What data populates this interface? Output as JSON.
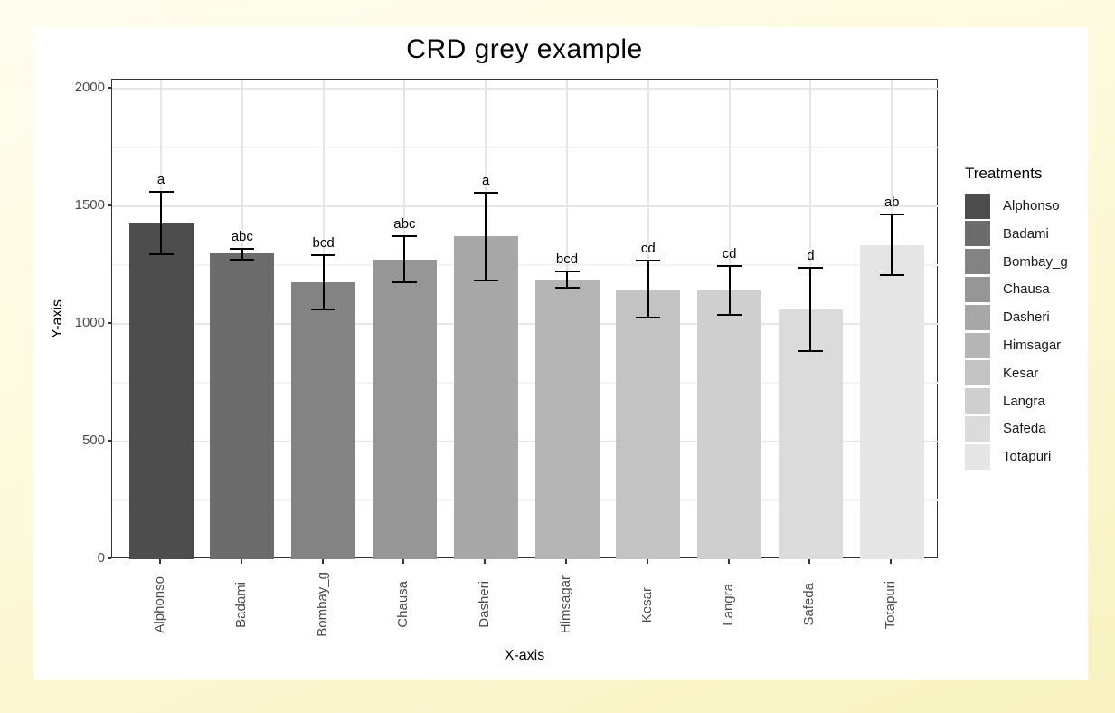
{
  "chart_data": {
    "type": "bar",
    "title": "CRD grey example",
    "xlabel": "X-axis",
    "ylabel": "Y-axis",
    "legend_title": "Treatments",
    "legend_position": "right",
    "ylim": [
      0,
      2000
    ],
    "ytick_values": [
      0,
      500,
      1000,
      1500,
      2000
    ],
    "ytick_labels": [
      "0",
      "500",
      "1000",
      "1500",
      "2000"
    ],
    "minor_gridline_values": [
      250,
      750,
      1250,
      1750
    ],
    "grid": "on",
    "categories": [
      "Alphonso",
      "Badami",
      "Bombay_g",
      "Chausa",
      "Dasheri",
      "Himsagar",
      "Kesar",
      "Langra",
      "Safeda",
      "Totapuri"
    ],
    "values": [
      1428,
      1300,
      1178,
      1275,
      1372,
      1188,
      1148,
      1143,
      1062,
      1336
    ],
    "error_low": [
      1295,
      1272,
      1063,
      1176,
      1186,
      1152,
      1026,
      1040,
      884,
      1206
    ],
    "error_high": [
      1561,
      1318,
      1293,
      1374,
      1558,
      1224,
      1270,
      1246,
      1240,
      1466
    ],
    "sig_letters": [
      "a",
      "abc",
      "bcd",
      "abc",
      "a",
      "bcd",
      "cd",
      "cd",
      "d",
      "ab"
    ],
    "bar_colors": [
      "#4D4D4D",
      "#6C6C6C",
      "#838383",
      "#969696",
      "#A7A7A7",
      "#B5B5B5",
      "#C3C3C3",
      "#CFCFCF",
      "#DBDBDB",
      "#E5E5E5"
    ]
  },
  "colors": {
    "page_background": "#FBF7CF",
    "card_background": "#FFFFFF",
    "panel_border": "#333333",
    "grid_major": "#E6E6E6",
    "grid_minor": "#F3F3F3",
    "error_bar": "#000000",
    "axis_text": "#4D4D4D"
  }
}
